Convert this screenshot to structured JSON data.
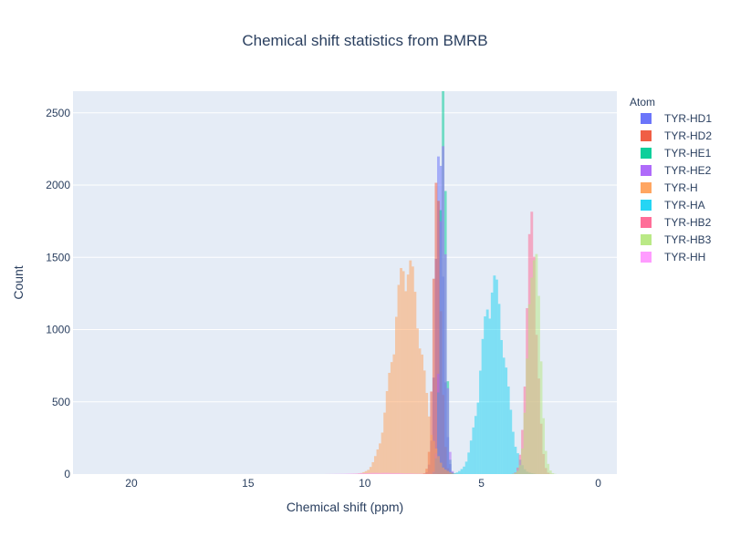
{
  "chart_data": {
    "type": "histogram",
    "title": "Chemical shift statistics from BMRB",
    "xlabel": "Chemical shift (ppm)",
    "ylabel": "Count",
    "xlim": [
      22.5,
      -0.8
    ],
    "ylim": [
      0,
      2650
    ],
    "x_reversed": true,
    "xticks": [
      20,
      15,
      10,
      5,
      0
    ],
    "yticks": [
      0,
      500,
      1000,
      1500,
      2000,
      2500
    ],
    "grid": true,
    "barmode": "overlay",
    "opacity": 0.5,
    "bin_width": 0.1,
    "legend": {
      "title": "Atom",
      "position": "right"
    },
    "series": [
      {
        "name": "TYR-HD1",
        "color": "#636efa",
        "center": 6.9,
        "sigma": 0.17,
        "peak": 2050,
        "lo": 5.8,
        "hi": 8.0
      },
      {
        "name": "TYR-HD2",
        "color": "#EF553B",
        "center": 7.0,
        "sigma": 0.16,
        "peak": 1900,
        "lo": 5.8,
        "hi": 8.0
      },
      {
        "name": "TYR-HE1",
        "color": "#00cc96",
        "center": 6.75,
        "sigma": 0.12,
        "peak": 2500,
        "lo": 5.8,
        "hi": 7.8
      },
      {
        "name": "TYR-HE2",
        "color": "#ab63fa",
        "center": 6.75,
        "sigma": 0.13,
        "peak": 2100,
        "lo": 5.8,
        "hi": 7.8
      },
      {
        "name": "TYR-H",
        "color": "#FFA15A",
        "center": 8.3,
        "sigma": 0.6,
        "peak": 1400,
        "lo": 5.5,
        "hi": 12.5
      },
      {
        "name": "TYR-HA",
        "color": "#19d3f3",
        "center": 4.6,
        "sigma": 0.5,
        "peak": 1260,
        "lo": 2.8,
        "hi": 6.4
      },
      {
        "name": "TYR-HB2",
        "color": "#FF6692",
        "center": 2.95,
        "sigma": 0.22,
        "peak": 1650,
        "lo": 1.8,
        "hi": 4.2
      },
      {
        "name": "TYR-HB3",
        "color": "#B6E880",
        "center": 2.85,
        "sigma": 0.24,
        "peak": 1560,
        "lo": 0.4,
        "hi": 4.6
      },
      {
        "name": "TYR-HH",
        "color": "#FF97FF",
        "center": 9.4,
        "sigma": 1.0,
        "peak": 8,
        "lo": 6.0,
        "hi": 12.5
      }
    ]
  }
}
